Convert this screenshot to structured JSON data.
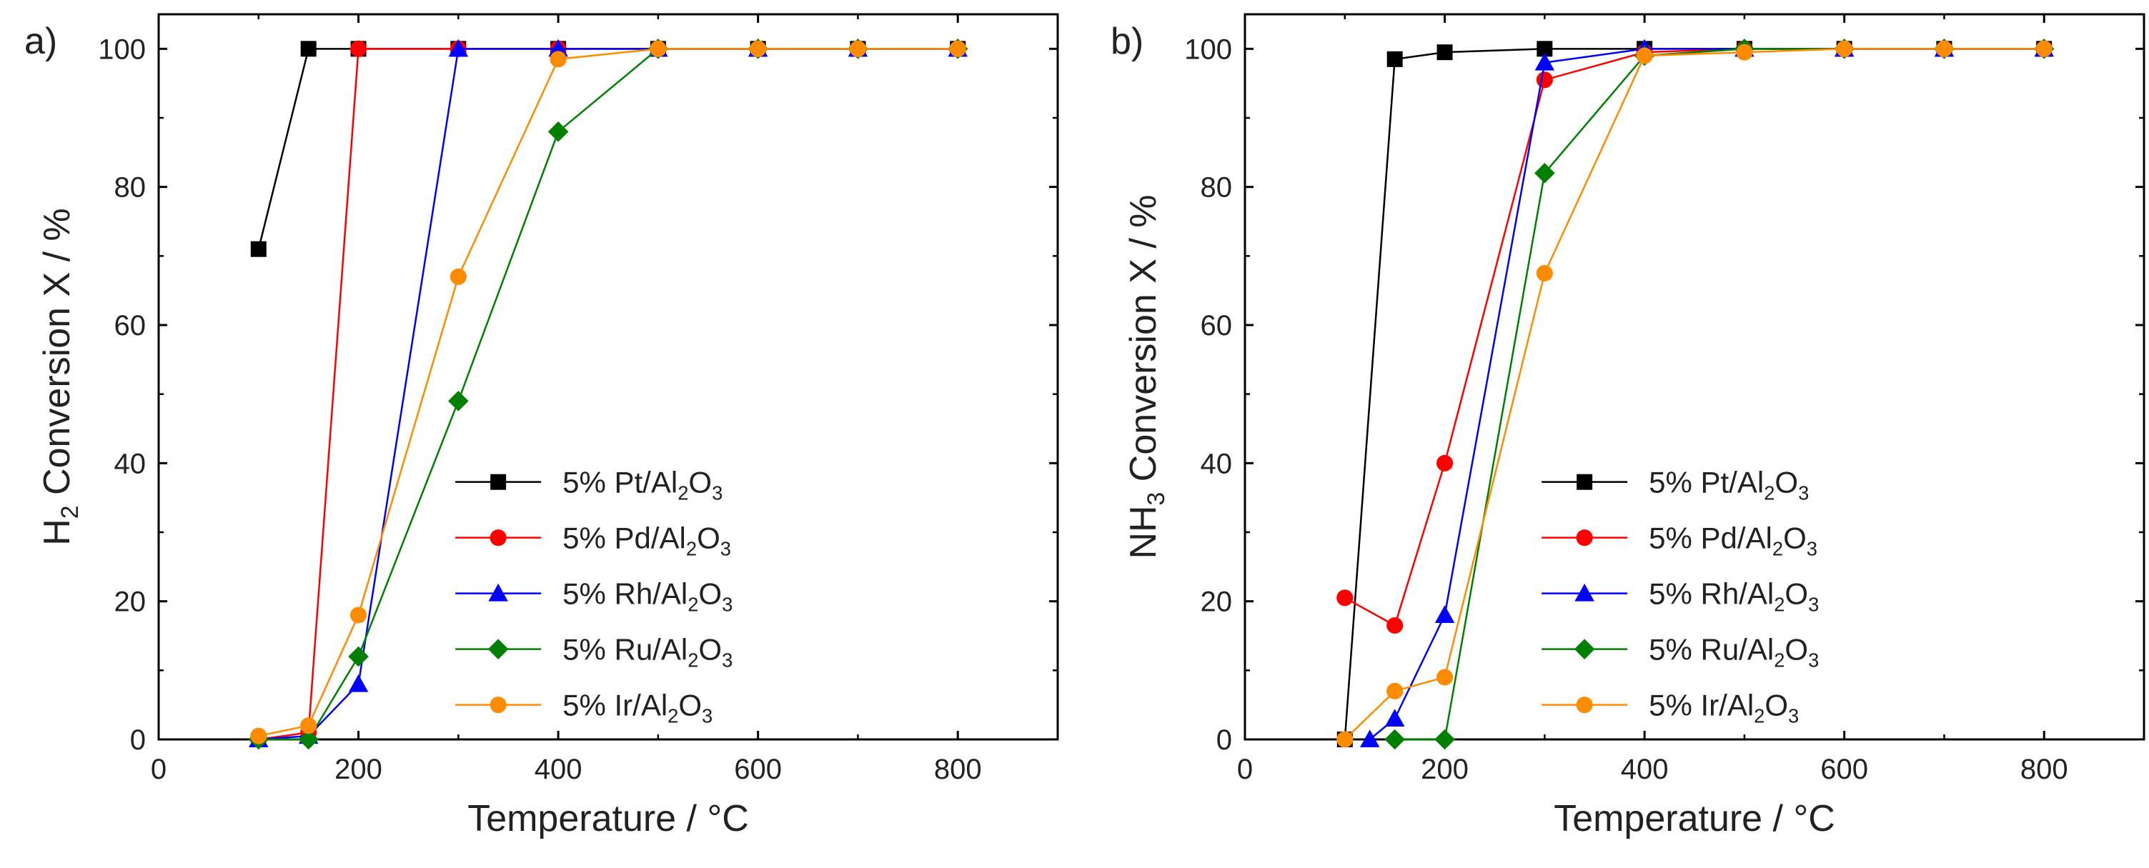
{
  "figure": {
    "background": "#ffffff"
  },
  "chart_data": [
    {
      "type": "line",
      "panel_label": "a)",
      "title": "",
      "xlabel": "Temperature / °C",
      "ylabel": {
        "pre": "H",
        "sub": "2",
        "post": " Conversion X / %"
      },
      "xlim": [
        0,
        900
      ],
      "ylim": [
        0,
        105
      ],
      "xticks": [
        0,
        200,
        400,
        600,
        800
      ],
      "yticks": [
        0,
        20,
        40,
        60,
        80,
        100
      ],
      "grid": false,
      "legend_position": "bottom-right",
      "series": [
        {
          "name": "5% Pt/Al2O3",
          "label": {
            "pre": "5% Pt/Al",
            "sub1": "2",
            "mid": "O",
            "sub2": "3"
          },
          "color": "#000000",
          "marker": "square",
          "x": [
            100,
            150,
            200,
            300,
            400,
            500,
            600,
            700,
            800
          ],
          "y": [
            71,
            100,
            100,
            100,
            100,
            100,
            100,
            100,
            100
          ]
        },
        {
          "name": "5% Pd/Al2O3",
          "label": {
            "pre": "5% Pd/Al",
            "sub1": "2",
            "mid": "O",
            "sub2": "3"
          },
          "color": "#ff0000",
          "marker": "circle",
          "x": [
            100,
            150,
            200,
            300,
            400,
            500,
            600,
            700,
            800
          ],
          "y": [
            0,
            1,
            100,
            100,
            100,
            100,
            100,
            100,
            100
          ]
        },
        {
          "name": "5% Rh/Al2O3",
          "label": {
            "pre": "5% Rh/Al",
            "sub1": "2",
            "mid": "O",
            "sub2": "3"
          },
          "color": "#0000ff",
          "marker": "triangle",
          "x": [
            100,
            150,
            200,
            300,
            400,
            500,
            600,
            700,
            800
          ],
          "y": [
            0,
            0.5,
            8,
            100,
            100,
            100,
            100,
            100,
            100
          ]
        },
        {
          "name": "5% Ru/Al2O3",
          "label": {
            "pre": "5% Ru/Al",
            "sub1": "2",
            "mid": "O",
            "sub2": "3"
          },
          "color": "#008000",
          "marker": "diamond",
          "x": [
            100,
            150,
            200,
            300,
            400,
            500,
            600,
            700,
            800
          ],
          "y": [
            0,
            0,
            12,
            49,
            88,
            100,
            100,
            100,
            100
          ]
        },
        {
          "name": "5% Ir/Al2O3",
          "label": {
            "pre": "5% Ir/Al",
            "sub1": "2",
            "mid": "O",
            "sub2": "3"
          },
          "color": "#ff8c00",
          "marker": "circle",
          "x": [
            100,
            150,
            200,
            300,
            400,
            500,
            600,
            700,
            800
          ],
          "y": [
            0.5,
            2,
            18,
            67,
            98.5,
            100,
            100,
            100,
            100
          ]
        }
      ]
    },
    {
      "type": "line",
      "panel_label": "b)",
      "title": "",
      "xlabel": "Temperature / °C",
      "ylabel": {
        "pre": "NH",
        "sub": "3",
        "post": " Conversion X / %"
      },
      "xlim": [
        0,
        900
      ],
      "ylim": [
        0,
        105
      ],
      "xticks": [
        0,
        200,
        400,
        600,
        800
      ],
      "yticks": [
        0,
        20,
        40,
        60,
        80,
        100
      ],
      "grid": false,
      "legend_position": "bottom-right",
      "series": [
        {
          "name": "5% Pt/Al2O3",
          "label": {
            "pre": "5% Pt/Al",
            "sub1": "2",
            "mid": "O",
            "sub2": "3"
          },
          "color": "#000000",
          "marker": "square",
          "x": [
            100,
            150,
            200,
            300,
            400,
            500,
            600,
            700,
            800
          ],
          "y": [
            0,
            98.5,
            99.5,
            100,
            100,
            100,
            100,
            100,
            100
          ]
        },
        {
          "name": "5% Pd/Al2O3",
          "label": {
            "pre": "5% Pd/Al",
            "sub1": "2",
            "mid": "O",
            "sub2": "3"
          },
          "color": "#ff0000",
          "marker": "circle",
          "x": [
            100,
            150,
            200,
            300,
            400,
            500,
            600,
            700,
            800
          ],
          "y": [
            20.5,
            16.5,
            40,
            95.5,
            99.5,
            100,
            100,
            100,
            100
          ]
        },
        {
          "name": "5% Rh/Al2O3",
          "label": {
            "pre": "5% Rh/Al",
            "sub1": "2",
            "mid": "O",
            "sub2": "3"
          },
          "color": "#0000ff",
          "marker": "triangle",
          "x": [
            125,
            150,
            200,
            300,
            400,
            500,
            600,
            700,
            800
          ],
          "y": [
            0,
            3,
            18,
            98,
            100,
            100,
            100,
            100,
            100
          ]
        },
        {
          "name": "5% Ru/Al2O3",
          "label": {
            "pre": "5% Ru/Al",
            "sub1": "2",
            "mid": "O",
            "sub2": "3"
          },
          "color": "#008000",
          "marker": "diamond",
          "x": [
            150,
            200,
            300,
            400,
            500,
            600,
            700,
            800
          ],
          "y": [
            0,
            0,
            82,
            99,
            100,
            100,
            100,
            100
          ]
        },
        {
          "name": "5% Ir/Al2O3",
          "label": {
            "pre": "5% Ir/Al",
            "sub1": "2",
            "mid": "O",
            "sub2": "3"
          },
          "color": "#ff8c00",
          "marker": "circle",
          "x": [
            100,
            150,
            200,
            300,
            400,
            500,
            600,
            700,
            800
          ],
          "y": [
            0,
            7,
            9,
            67.5,
            99,
            99.5,
            100,
            100,
            100
          ]
        }
      ]
    }
  ]
}
